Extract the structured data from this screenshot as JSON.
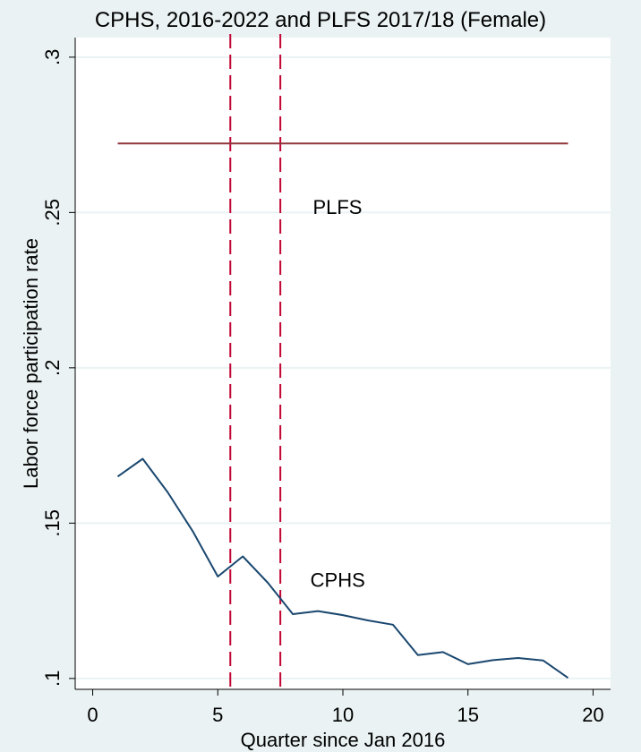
{
  "chart_data": {
    "type": "line",
    "title": "CPHS, 2016-2022 and PLFS 2017/18  (Female)",
    "xlabel": "Quarter since Jan 2016",
    "ylabel": "Labor force participation rate",
    "xlim": [
      -0.7,
      20.7
    ],
    "ylim": [
      0.0965,
      0.3063
    ],
    "x_ticks": [
      0,
      5,
      10,
      15,
      20
    ],
    "x_tick_labels": [
      "0",
      "5",
      "10",
      "15",
      "20"
    ],
    "y_ticks": [
      0.1,
      0.15,
      0.2,
      0.25,
      0.3
    ],
    "y_tick_labels": [
      ".1",
      ".15",
      ".2",
      ".25",
      ".3"
    ],
    "grid": true,
    "series": [
      {
        "name": "CPHS",
        "color": "#1a476f",
        "x": [
          1,
          2,
          3,
          4,
          5,
          6,
          7,
          8,
          9,
          10,
          11,
          12,
          13,
          14,
          15,
          16,
          17,
          18,
          19
        ],
        "y": [
          0.165,
          0.1707,
          0.1599,
          0.1474,
          0.1328,
          0.1393,
          0.1308,
          0.1207,
          0.1217,
          0.1204,
          0.1187,
          0.1173,
          0.1075,
          0.1085,
          0.1046,
          0.1059,
          0.1066,
          0.1058,
          0.1002
        ]
      },
      {
        "name": "PLFS",
        "color": "#90353b",
        "x": [
          1,
          19
        ],
        "y": [
          0.2722,
          0.2722
        ]
      }
    ],
    "vlines": {
      "x": [
        5.5,
        7.5
      ],
      "color": "#c10534"
    },
    "annotations": [
      {
        "text": "PLFS",
        "x": 8.8,
        "y": 0.2495
      },
      {
        "text": "CPHS",
        "x": 8.7,
        "y": 0.1295
      }
    ]
  }
}
